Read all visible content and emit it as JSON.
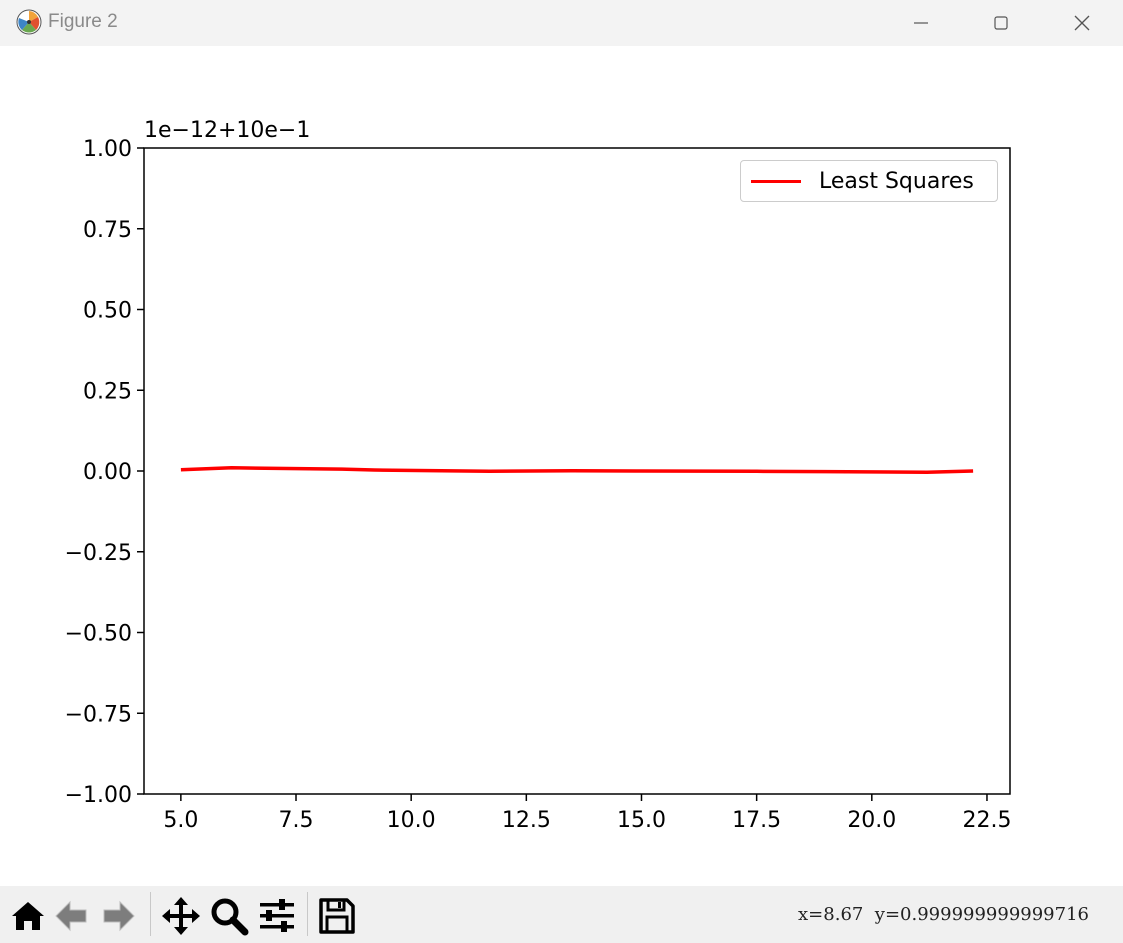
{
  "window": {
    "title": "Figure 2",
    "icons": {
      "app": "matplotlib-logo-icon",
      "minimize": "minimize-icon",
      "maximize": "maximize-icon",
      "close": "close-icon"
    }
  },
  "toolbar": {
    "tools": [
      {
        "name": "home-icon"
      },
      {
        "name": "back-arrow-icon"
      },
      {
        "name": "forward-arrow-icon"
      },
      {
        "name": "pan-icon"
      },
      {
        "name": "zoom-icon"
      },
      {
        "name": "configure-subplots-icon"
      },
      {
        "name": "save-icon"
      }
    ],
    "coordinates": "x=8.67  y=0.999999999999716"
  },
  "chart_data": {
    "type": "line",
    "offset_text": "1e−12+10e−1",
    "xlim": [
      4.2,
      23.0
    ],
    "ylim": [
      -1.0,
      1.0
    ],
    "x_ticks": [
      5.0,
      7.5,
      10.0,
      12.5,
      15.0,
      17.5,
      20.0,
      22.5
    ],
    "x_tick_labels": [
      "5.0",
      "7.5",
      "10.0",
      "12.5",
      "15.0",
      "17.5",
      "20.0",
      "22.5"
    ],
    "y_ticks": [
      1.0,
      0.75,
      0.5,
      0.25,
      0.0,
      -0.25,
      -0.5,
      -0.75,
      -1.0
    ],
    "y_tick_labels": [
      "1.00",
      "0.75",
      "0.50",
      "0.25",
      "0.00",
      "−0.25",
      "−0.50",
      "−0.75",
      "−1.00"
    ],
    "legend": {
      "position": "upper right",
      "entries": [
        "Least Squares"
      ]
    },
    "grid": false,
    "series": [
      {
        "name": "Least Squares",
        "color": "#ff0000",
        "x": [
          5.0,
          6.1,
          8.5,
          9.2,
          11.7,
          13.5,
          15.0,
          17.5,
          19.0,
          21.2,
          22.2
        ],
        "y": [
          0.004,
          0.01,
          0.006,
          0.003,
          -0.001,
          0.001,
          0.0,
          -0.001,
          -0.002,
          -0.004,
          0.0
        ]
      }
    ]
  }
}
